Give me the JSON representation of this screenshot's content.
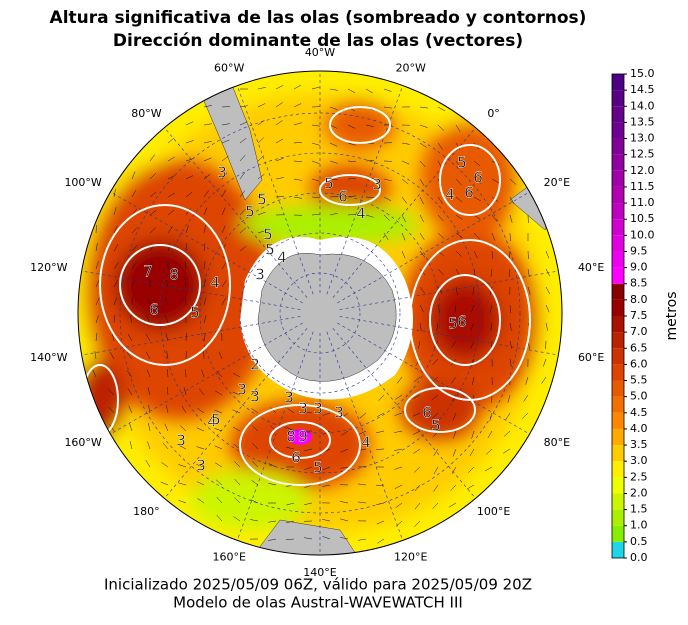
{
  "header": {
    "title": "Altura significativa de las olas (sombreado y contornos)",
    "subtitle": "Dirección dominante de las olas (vectores)"
  },
  "map": {
    "longitude_labels": [
      "40°W",
      "20°W",
      "0°",
      "20°E",
      "40°E",
      "60°E",
      "80°E",
      "100°E",
      "120°E",
      "140°E",
      "160°E",
      "180°",
      "160°W",
      "140°W",
      "120°W",
      "100°W",
      "80°W",
      "60°W"
    ],
    "contour_labels": [
      "7",
      "8",
      "6",
      "5",
      "4",
      "5",
      "3",
      "5",
      "5",
      "4",
      "3",
      "5",
      "6",
      "3",
      "4",
      "5",
      "6",
      "6",
      "5",
      "4",
      "5",
      "6",
      "9",
      "8",
      "6",
      "5",
      "4",
      "3",
      "3",
      "3",
      "3",
      "3",
      "3",
      "4",
      "5",
      "6",
      "5",
      "3",
      "3",
      "2"
    ]
  },
  "colorbar": {
    "label": "metros",
    "ticks": [
      {
        "value": 0,
        "label": "0.0"
      },
      {
        "value": 0.5,
        "label": "0.5"
      },
      {
        "value": 1,
        "label": "1.0"
      },
      {
        "value": 1.5,
        "label": "1.5"
      },
      {
        "value": 2,
        "label": "2.0"
      },
      {
        "value": 2.5,
        "label": "2.5"
      },
      {
        "value": 3,
        "label": "3.0"
      },
      {
        "value": 3.5,
        "label": "3.5"
      },
      {
        "value": 4,
        "label": "4.0"
      },
      {
        "value": 4.5,
        "label": "4.5"
      },
      {
        "value": 5,
        "label": "5.0"
      },
      {
        "value": 5.5,
        "label": "5.5"
      },
      {
        "value": 6,
        "label": "6.0"
      },
      {
        "value": 6.5,
        "label": "6.5"
      },
      {
        "value": 7,
        "label": "7.0"
      },
      {
        "value": 7.5,
        "label": "7.5"
      },
      {
        "value": 8,
        "label": "8.0"
      },
      {
        "value": 8.5,
        "label": "8.5"
      },
      {
        "value": 9,
        "label": "9.0"
      },
      {
        "value": 9.5,
        "label": "9.5"
      },
      {
        "value": 10,
        "label": "10.0"
      },
      {
        "value": 10.5,
        "label": "10.5"
      },
      {
        "value": 11,
        "label": "11.0"
      },
      {
        "value": 11.5,
        "label": "11.5"
      },
      {
        "value": 12,
        "label": "12.0"
      },
      {
        "value": 12.5,
        "label": "12.5"
      },
      {
        "value": 13,
        "label": "13.0"
      },
      {
        "value": 13.5,
        "label": "13.5"
      },
      {
        "value": 14,
        "label": "14.0"
      },
      {
        "value": 14.5,
        "label": "14.5"
      },
      {
        "value": 15,
        "label": "15.0"
      }
    ],
    "colors": [
      "#1ed6e6",
      "#88ee00",
      "#aaf000",
      "#ccf500",
      "#eeff00",
      "#ffee00",
      "#ffcc00",
      "#ffaa00",
      "#ff8800",
      "#f27000",
      "#e85a00",
      "#dd4400",
      "#cc3300",
      "#bb2200",
      "#aa1100",
      "#990000",
      "#880000",
      "#ff00ff",
      "#f000f0",
      "#e000e0",
      "#d000d0",
      "#c000c0",
      "#b000b0",
      "#a000a8",
      "#9000a0",
      "#800098",
      "#700090",
      "#650088",
      "#580085",
      "#4b0082"
    ]
  },
  "footer": {
    "line1": "Inicializado 2025/05/09 06Z, válido para 2025/05/09 20Z",
    "line2": "Modelo de olas Austral-WAVEWATCH III"
  }
}
